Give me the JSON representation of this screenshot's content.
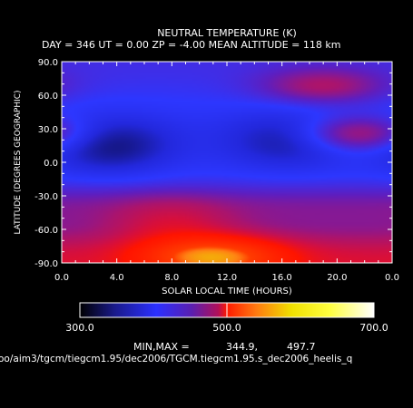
{
  "chart_data": {
    "type": "heatmap",
    "title": "NEUTRAL TEMPERATURE (K)",
    "subtitle": "DAY = 346   UT =   0.00   ZP =   -4.00   MEAN ALTITUDE = 118 km",
    "xlabel": "SOLAR LOCAL TIME (HOURS)",
    "ylabel": "LATITUDE (DEGREES GEOGRAPHIC)",
    "xlim": [
      0,
      24
    ],
    "ylim": [
      -90,
      90
    ],
    "x_ticks": [
      "0.0",
      "4.0",
      "8.0",
      "12.0",
      "16.0",
      "20.0",
      "0.0"
    ],
    "y_ticks": [
      "90.0",
      "60.0",
      "30.0",
      "0.0",
      "-30.0",
      "-60.0",
      "-90.0"
    ],
    "x_tick_values": [
      0,
      4,
      8,
      12,
      16,
      20,
      24
    ],
    "y_tick_values": [
      90,
      60,
      30,
      0,
      -30,
      -60,
      -90
    ],
    "colorbar": {
      "min": 300.0,
      "max": 700.0,
      "ticks": [
        "300.0",
        "500.0",
        "700.0"
      ],
      "tick_values": [
        300,
        500,
        700
      ]
    },
    "minmax_label": "MIN,MAX =",
    "min_value": "344.9,",
    "max_value": "497.7",
    "file_path": "oo/aim3/tgcm/tiegcm1.95/dec2006/TGCM.tiegcm1.95.s_dec2006_heelis_q",
    "field_features": [
      {
        "kind": "low",
        "lt": 3.5,
        "lat": 15,
        "value": 345
      },
      {
        "kind": "low",
        "lt": 16.5,
        "lat": 20,
        "value": 350
      },
      {
        "kind": "low",
        "lt": 8.0,
        "lat": -58,
        "value": 395
      },
      {
        "kind": "high",
        "lt": 11.0,
        "lat": -85,
        "value": 497.7
      },
      {
        "kind": "high",
        "lt": 19.0,
        "lat": 68,
        "value": 400
      },
      {
        "kind": "high",
        "lt": 21.5,
        "lat": 25,
        "value": 410
      }
    ]
  }
}
